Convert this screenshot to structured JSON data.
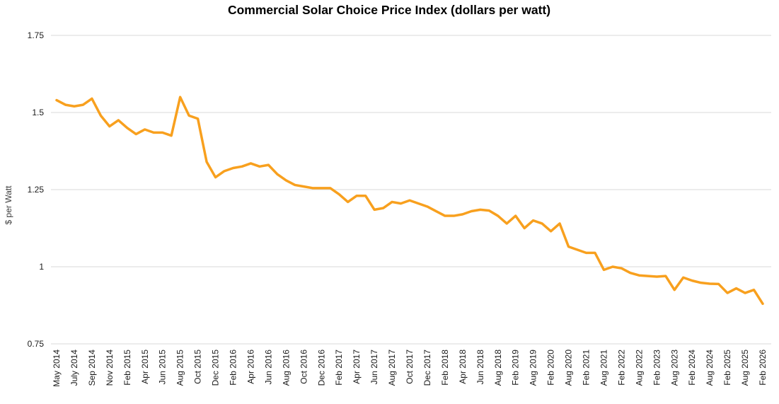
{
  "chart_data": {
    "type": "line",
    "title": "Commercial Solar Choice Price Index (dollars per watt)",
    "xlabel": "",
    "ylabel": "$ per Watt",
    "series_name": "Commercial Solar Choice Price Index",
    "legend": "none",
    "grid": true,
    "ylim": [
      0.75,
      1.75
    ],
    "yticks": [
      0.75,
      1,
      1.25,
      1.5,
      1.75
    ],
    "ytick_labels": [
      "0.75",
      "1",
      "1.25",
      "1.5",
      "1.75"
    ],
    "x_tick_labels": [
      "May 2014",
      "July 2014",
      "Sep 2014",
      "Nov 2014",
      "Feb 2015",
      "Apr 2015",
      "Jun 2015",
      "Aug 2015",
      "Oct 2015",
      "Dec 2015",
      "Feb 2016",
      "Apr 2016",
      "Jun 2016",
      "Aug 2016",
      "Oct 2016",
      "Dec 2016",
      "Feb 2017",
      "Apr 2017",
      "Jun 2017",
      "Aug 2017",
      "Oct 2017",
      "Dec 2017",
      "Feb 2018",
      "Apr 2018",
      "Jun 2018",
      "Aug 2018",
      "Feb 2019",
      "Aug 2019",
      "Feb 2020",
      "Aug 2020",
      "Feb 2021",
      "Aug 2021",
      "Feb 2022",
      "Aug 2022",
      "Feb 2023",
      "Aug 2023",
      "Feb 2024",
      "Aug 2024",
      "Feb 2025",
      "Aug 2025",
      "Feb 2026"
    ],
    "label_every": 2,
    "values": [
      1.54,
      1.525,
      1.52,
      1.525,
      1.545,
      1.49,
      1.455,
      1.475,
      1.45,
      1.43,
      1.445,
      1.435,
      1.435,
      1.425,
      1.55,
      1.49,
      1.48,
      1.34,
      1.29,
      1.31,
      1.32,
      1.325,
      1.335,
      1.325,
      1.33,
      1.3,
      1.28,
      1.265,
      1.26,
      1.255,
      1.255,
      1.255,
      1.235,
      1.21,
      1.23,
      1.23,
      1.185,
      1.19,
      1.21,
      1.205,
      1.215,
      1.205,
      1.195,
      1.18,
      1.165,
      1.165,
      1.17,
      1.18,
      1.185,
      1.182,
      1.165,
      1.14,
      1.165,
      1.125,
      1.15,
      1.14,
      1.115,
      1.14,
      1.065,
      1.055,
      1.045,
      1.045,
      0.99,
      1.0,
      0.995,
      0.98,
      0.972,
      0.97,
      0.968,
      0.97,
      0.925,
      0.965,
      0.955,
      0.948,
      0.945,
      0.944,
      0.915,
      0.93,
      0.915,
      0.925,
      0.88
    ],
    "line_color": "#F8A01E",
    "line_width": 3.5,
    "gridline_color": "#D9D9D9",
    "title_color": "#000000",
    "axis_text_color": "#1a1a1a",
    "y_axis_title_color": "#3c3c3c",
    "background_color": "#ffffff"
  }
}
